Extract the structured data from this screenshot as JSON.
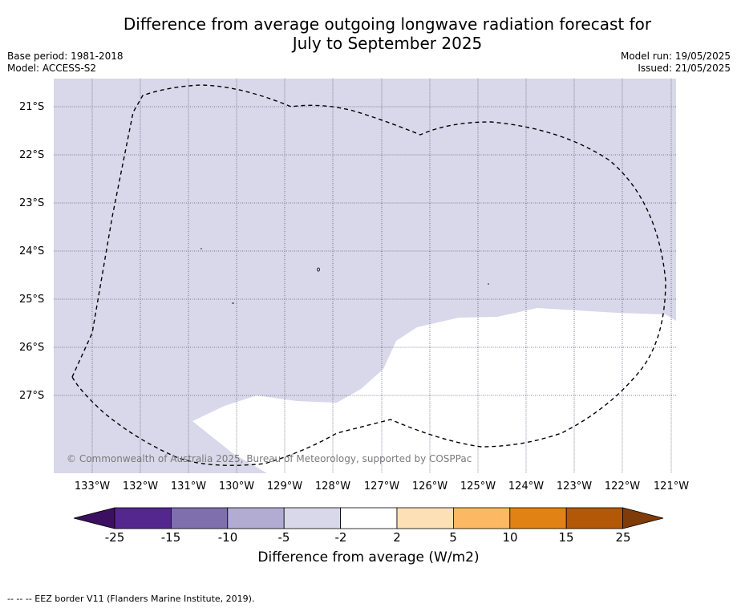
{
  "title_line1": "Difference from average outgoing longwave radiation forecast for",
  "title_line2": "July to September 2025",
  "base_period": "Base period: 1981-2018",
  "model": "Model: ACCESS-S2",
  "model_run": "Model run: 19/05/2025",
  "issued": "Issued: 21/05/2025",
  "lat_labels": [
    "21°S",
    "22°S",
    "23°S",
    "24°S",
    "25°S",
    "26°S",
    "27°S"
  ],
  "lon_labels": [
    "133°W",
    "132°W",
    "131°W",
    "130°W",
    "129°W",
    "128°W",
    "127°W",
    "126°W",
    "125°W",
    "124°W",
    "123°W",
    "122°W",
    "121°W"
  ],
  "copyright": "© Commonwealth of Australia 2025, Bureau of Meteorology, supported by COSPPac",
  "colorbar": {
    "ticks": [
      "-25",
      "-15",
      "-10",
      "-5",
      "-2",
      "2",
      "5",
      "10",
      "15",
      "25"
    ],
    "colors": [
      "#3c1060",
      "#54278f",
      "#7f70ad",
      "#b2abd2",
      "#d8d8ea",
      "#ffffff",
      "#fee0b6",
      "#fdb863",
      "#e08214",
      "#b35806",
      "#7f3b08"
    ],
    "title": "Difference from average (W/m2)"
  },
  "field_colors": {
    "neutral_negative": "#d8d8ea",
    "neutral": "#ffffff"
  },
  "footer": "--  --  -- EEZ border V11 (Flanders Marine Institute, 2019)."
}
